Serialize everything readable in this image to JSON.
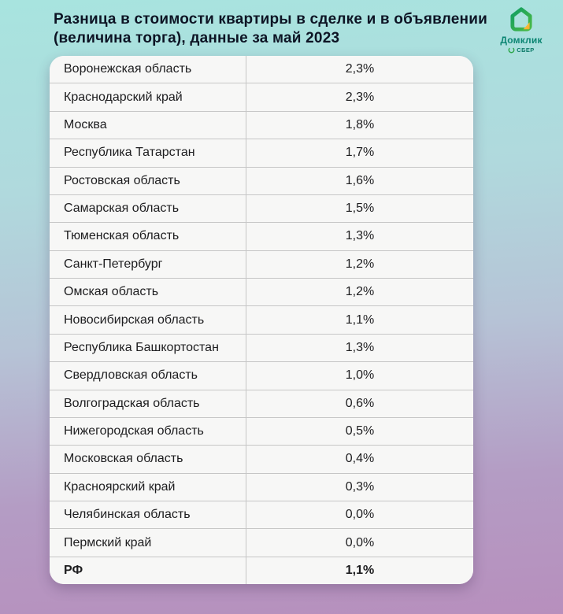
{
  "header": {
    "title_line1": "Разница в стоимости квартиры в сделке и в объявлении",
    "title_line2": "(величина торга), данные за май 2023",
    "logo": {
      "brand": "Домклик",
      "sub_brand": "СБЕР"
    }
  },
  "table": {
    "rows": [
      {
        "region": "Воронежская область",
        "value": "2,3%",
        "is_total": false
      },
      {
        "region": "Краснодарский край",
        "value": "2,3%",
        "is_total": false
      },
      {
        "region": "Москва",
        "value": "1,8%",
        "is_total": false
      },
      {
        "region": "Республика Татарстан",
        "value": "1,7%",
        "is_total": false
      },
      {
        "region": "Ростовская область",
        "value": "1,6%",
        "is_total": false
      },
      {
        "region": "Самарская область",
        "value": "1,5%",
        "is_total": false
      },
      {
        "region": "Тюменская область",
        "value": "1,3%",
        "is_total": false
      },
      {
        "region": "Санкт-Петербург",
        "value": "1,2%",
        "is_total": false
      },
      {
        "region": "Омская область",
        "value": "1,2%",
        "is_total": false
      },
      {
        "region": "Новосибирская область",
        "value": "1,1%",
        "is_total": false
      },
      {
        "region": "Республика Башкортостан",
        "value": "1,3%",
        "is_total": false
      },
      {
        "region": "Свердловская область",
        "value": "1,0%",
        "is_total": false
      },
      {
        "region": "Волгоградская область",
        "value": "0,6%",
        "is_total": false
      },
      {
        "region": "Нижегородская область",
        "value": "0,5%",
        "is_total": false
      },
      {
        "region": "Московская область",
        "value": "0,4%",
        "is_total": false
      },
      {
        "region": "Красноярский край",
        "value": "0,3%",
        "is_total": false
      },
      {
        "region": "Челябинская область",
        "value": "0,0%",
        "is_total": false
      },
      {
        "region": "Пермский край",
        "value": "0,0%",
        "is_total": false
      },
      {
        "region": "РФ",
        "value": "1,1%",
        "is_total": true
      }
    ]
  },
  "chart_data": {
    "type": "table",
    "title": "Разница в стоимости квартиры в сделке и в объявлении (величина торга), данные за май 2023",
    "unit": "%",
    "categories": [
      "Воронежская область",
      "Краснодарский край",
      "Москва",
      "Республика Татарстан",
      "Ростовская область",
      "Самарская область",
      "Тюменская область",
      "Санкт-Петербург",
      "Омская область",
      "Новосибирская область",
      "Республика Башкортостан",
      "Свердловская область",
      "Волгоградская область",
      "Нижегородская область",
      "Московская область",
      "Красноярский край",
      "Челябинская область",
      "Пермский край",
      "РФ"
    ],
    "values": [
      2.3,
      2.3,
      1.8,
      1.7,
      1.6,
      1.5,
      1.3,
      1.2,
      1.2,
      1.1,
      1.3,
      1.0,
      0.6,
      0.5,
      0.4,
      0.3,
      0.0,
      0.0,
      1.1
    ]
  },
  "colors": {
    "bg_top": "#a8e4df",
    "bg_bottom": "#b78fbd",
    "card_bg": "#f7f7f6",
    "divider": "#c6c6c6",
    "title_text": "#0d1424",
    "brand_green": "#2ca64a",
    "brand_teal": "#0b8572",
    "fold_yellow": "#f8bb2e"
  }
}
